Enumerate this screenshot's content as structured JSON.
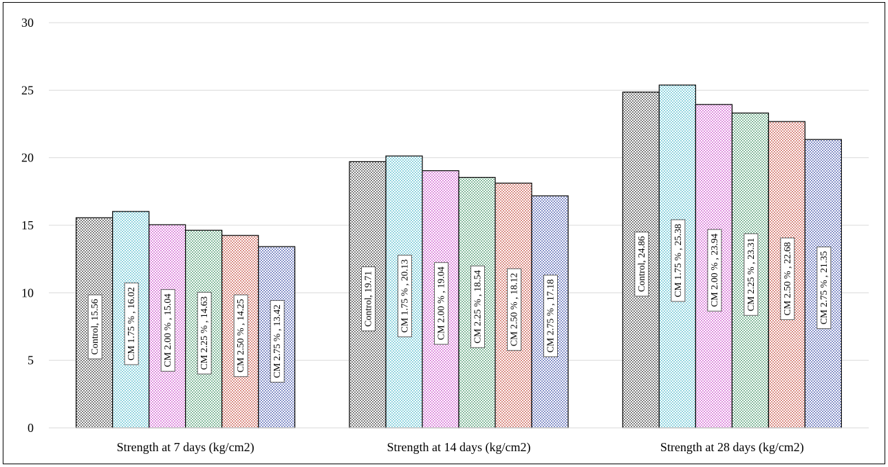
{
  "chart_data": {
    "type": "bar",
    "title": "",
    "xlabel": "",
    "ylabel": "",
    "ylim": [
      0,
      30
    ],
    "yticks": [
      0,
      5,
      10,
      15,
      20,
      25,
      30
    ],
    "grid": true,
    "legend": "none",
    "categories": [
      "Strength at 7 days (kg/cm2)",
      "Strength at 14 days (kg/cm2)",
      "Strength at 28 days (kg/cm2)"
    ],
    "series": [
      {
        "name": "Control",
        "color": "#222222",
        "values": [
          15.56,
          19.71,
          24.86
        ],
        "labels": [
          "Control, 15.56",
          "Control, 19.71",
          "Control, 24.86"
        ]
      },
      {
        "name": "CM 1.75 %",
        "color": "#3fb5c9",
        "values": [
          16.02,
          20.13,
          25.38
        ],
        "labels": [
          "CM 1.75 %  , 16.02",
          "CM 1.75 %  , 20.13",
          "CM 1.75 %  , 25.38"
        ]
      },
      {
        "name": "CM 2.00 %",
        "color": "#c83fc8",
        "values": [
          15.04,
          19.04,
          23.94
        ],
        "labels": [
          "CM 2.00 %  , 15.04",
          "CM 2.00 %  , 19.04",
          "CM 2.00 %  , 23.94"
        ]
      },
      {
        "name": "CM 2.25 %",
        "color": "#2e8b57",
        "values": [
          14.63,
          18.54,
          23.31
        ],
        "labels": [
          "CM 2.25 %  , 14.63",
          "CM 2.25 %  , 18.54",
          "CM 2.25 %  , 23.31"
        ]
      },
      {
        "name": "CM 2.50 %",
        "color": "#c0392b",
        "values": [
          14.25,
          18.12,
          22.68
        ],
        "labels": [
          "CM 2.50 %  , 14.25",
          "CM 2.50 %  , 18.12",
          "CM 2.50 %  , 22.68"
        ]
      },
      {
        "name": "CM 2.75 %",
        "color": "#2c3fa0",
        "values": [
          13.42,
          17.18,
          21.35
        ],
        "labels": [
          "CM 2.75 %  , 13.42",
          "CM 2.75 %  , 17.18",
          "CM 2.75 %  , 21.35"
        ]
      }
    ]
  }
}
